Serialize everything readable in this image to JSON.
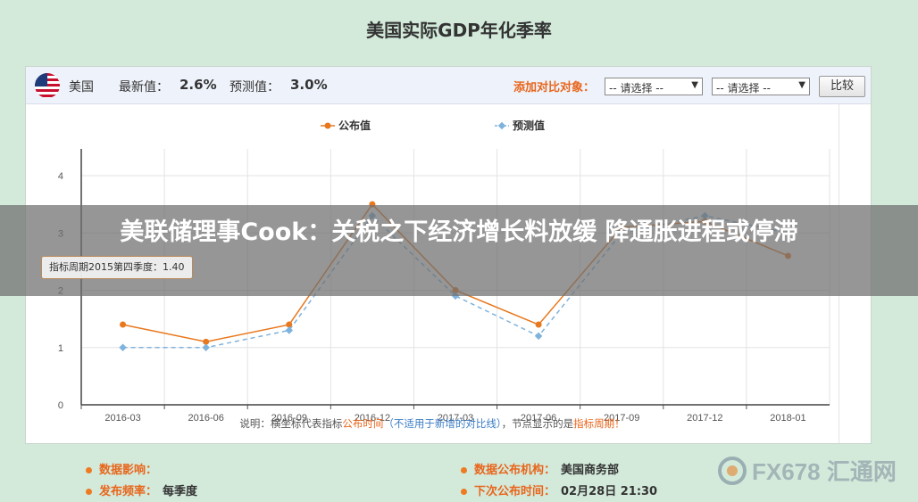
{
  "page": {
    "title": "美国实际GDP年化季率"
  },
  "toolbar": {
    "country": "美国",
    "latest_label": "最新值：",
    "latest_value": "2.6%",
    "forecast_label": "预测值：",
    "forecast_value": "3.0%",
    "compare_label": "添加对比对象：",
    "select1": "-- 请选择 --",
    "select2": "-- 请选择 --",
    "compare_button": "比较"
  },
  "tooltip": {
    "text": "指标周期2015第四季度：1.40"
  },
  "chart_data": {
    "type": "line",
    "categories": [
      "2016-03",
      "2016-06",
      "2016-09",
      "2016-12",
      "2017-03",
      "2017-06",
      "2017-09",
      "2017-12",
      "2018-01"
    ],
    "x": [
      0,
      1,
      2,
      2.75,
      3.75,
      4.5,
      5.2,
      6.9,
      8
    ],
    "series": [
      {
        "name": "公布值",
        "color": "#e8781e",
        "dashed": false,
        "x": [
          0.5,
          1.5,
          2.5,
          3.5,
          4.5,
          5.5,
          6.5,
          7.5,
          8.5
        ],
        "values": [
          1.4,
          1.1,
          1.4,
          3.5,
          2.0,
          1.4,
          3.1,
          3.2,
          2.6
        ]
      },
      {
        "name": "预测值",
        "color": "#7fb3dc",
        "dashed": true,
        "x": [
          0.5,
          1.5,
          2.5,
          3.5,
          4.5,
          5.5,
          6.5,
          7.5,
          8.5
        ],
        "values": [
          1.0,
          1.0,
          1.3,
          3.3,
          1.9,
          1.2,
          3.0,
          3.3,
          3.0
        ]
      }
    ],
    "yticks": [
      0,
      1,
      2,
      3,
      4
    ],
    "ylim": [
      0,
      4
    ],
    "grid": true,
    "legend_position": "top-center",
    "note_prefix": "说明：横坐标代表指标",
    "note_highlight1": "公布时间",
    "note_middle": "（不适用于新增的对比线）",
    "note_sep": "，节点显示的是",
    "note_highlight2": "指标周期",
    "note_end": "！"
  },
  "footer": {
    "impact_label": "数据影响：",
    "impact_value": "",
    "frequency_label": "发布频率：",
    "frequency_value": "每季度",
    "agency_label": "数据公布机构：",
    "agency_value": "美国商务部",
    "next_label": "下次公布时间：",
    "next_value": "02月28日 21:30"
  },
  "overlay": {
    "headline": "美联储理事Cook：关税之下经济增长料放缓 降通胀进程或停滞"
  },
  "watermark": {
    "text": "FX678 汇通网"
  }
}
